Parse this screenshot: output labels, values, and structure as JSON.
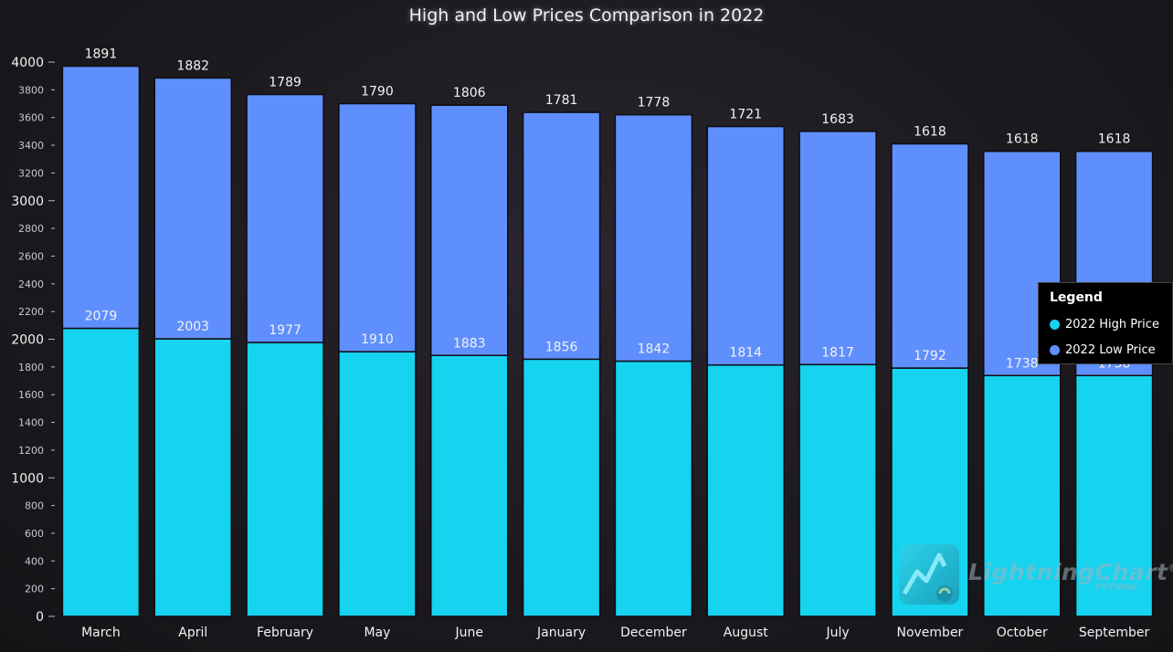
{
  "chart_data": {
    "type": "bar",
    "stacked": true,
    "title": "High and Low Prices Comparison in 2022",
    "categories": [
      "March",
      "April",
      "February",
      "May",
      "June",
      "January",
      "December",
      "August",
      "July",
      "November",
      "October",
      "September"
    ],
    "series": [
      {
        "name": "2022 High Price",
        "color": "#16d3ef",
        "values": [
          2079,
          2003,
          1977,
          1910,
          1883,
          1856,
          1842,
          1814,
          1817,
          1792,
          1738,
          1738
        ]
      },
      {
        "name": "2022 Low Price",
        "color": "#5f8ffd",
        "values": [
          1891,
          1882,
          1789,
          1790,
          1806,
          1781,
          1778,
          1721,
          1683,
          1618,
          1618,
          1618
        ]
      }
    ],
    "ylim": [
      0,
      4000
    ],
    "y_major_ticks": [
      0,
      1000,
      2000,
      3000,
      4000
    ],
    "y_minor_ticks": [
      200,
      400,
      600,
      800,
      1200,
      1400,
      1600,
      1800,
      2200,
      2400,
      2600,
      2800,
      3200,
      3400,
      3600,
      3800
    ],
    "legend_position": "right",
    "grid": false
  },
  "legend": {
    "title": "Legend"
  },
  "watermark": {
    "brand": "LightningChart",
    "registered": "®",
    "sub": "PYTHON"
  },
  "colors": {
    "background": "#1c1a1f",
    "axis": "#5fc6e0",
    "bar_border": "#0e0d10"
  }
}
